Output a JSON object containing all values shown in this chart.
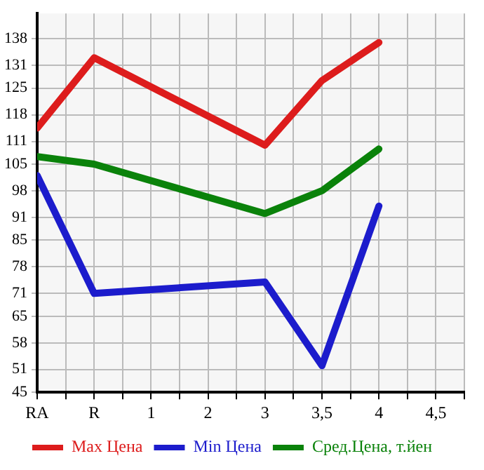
{
  "chart_data": {
    "type": "line",
    "categories": [
      "RA",
      "R",
      "1",
      "2",
      "3",
      "3,5",
      "4",
      "4,5"
    ],
    "series": [
      {
        "name": "Max Цена",
        "color": "#dd1c1c",
        "values": [
          114.5,
          133,
          null,
          null,
          110,
          127,
          137,
          null
        ]
      },
      {
        "name": "Min Цена",
        "color": "#1c1ccc",
        "values": [
          102,
          71,
          null,
          null,
          74,
          52,
          94,
          null
        ]
      },
      {
        "name": "Сред.Цена, т.йен",
        "color": "#0a820a",
        "values": [
          107,
          105,
          null,
          null,
          92,
          98,
          109,
          null
        ]
      }
    ],
    "ylim": [
      45,
      144.64
    ],
    "yticks": [
      45,
      51,
      58,
      65,
      71,
      78,
      85,
      91,
      98,
      105,
      111,
      118,
      125,
      131,
      138
    ],
    "grid": true,
    "legend": "bottom",
    "marker": "none",
    "line_style": "solid"
  }
}
